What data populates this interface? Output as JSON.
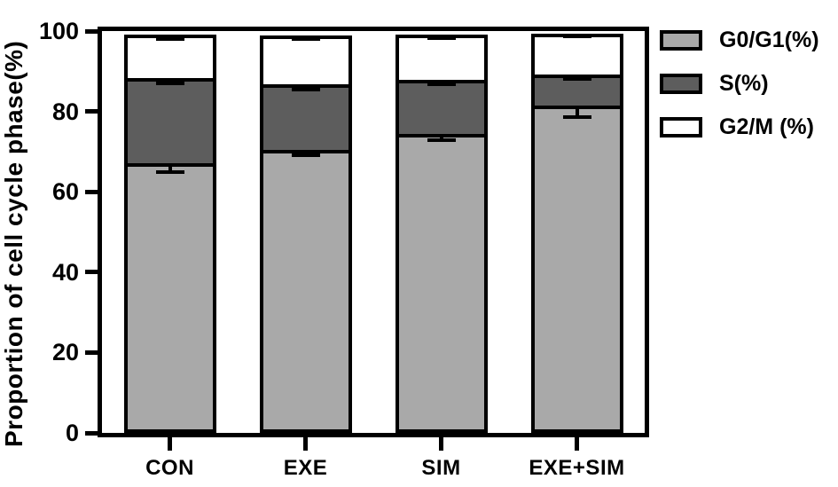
{
  "chart_data": {
    "type": "bar",
    "stacked": true,
    "title": "",
    "ylabel": "Proportion of cell cycle phase(%)",
    "xlabel": "",
    "ylim": [
      0,
      100
    ],
    "yticks": [
      0,
      20,
      40,
      60,
      80,
      100
    ],
    "categories": [
      "CON",
      "EXE",
      "SIM",
      "EXE+SIM"
    ],
    "series": [
      {
        "name": "G0/G1(%)",
        "color": "#a9a9a9",
        "values": [
          66.6,
          70.0,
          74.0,
          81.0
        ],
        "errors": [
          1.6,
          1.0,
          1.2,
          2.4
        ]
      },
      {
        "name": "S(%)",
        "color": "#5d5d5d",
        "values": [
          21.2,
          16.4,
          13.5,
          7.8
        ],
        "errors": [
          0.9,
          0.9,
          0.8,
          0.7
        ]
      },
      {
        "name": "G2/M (%)",
        "color": "#ffffff",
        "values": [
          11.3,
          12.6,
          11.6,
          10.6
        ],
        "errors": [
          1.0,
          0.9,
          0.8,
          0.8
        ]
      }
    ],
    "grid": false,
    "legend_position": "top-right",
    "axis_color": "#000000",
    "bar_border_color": "#000000",
    "background": "#ffffff"
  }
}
